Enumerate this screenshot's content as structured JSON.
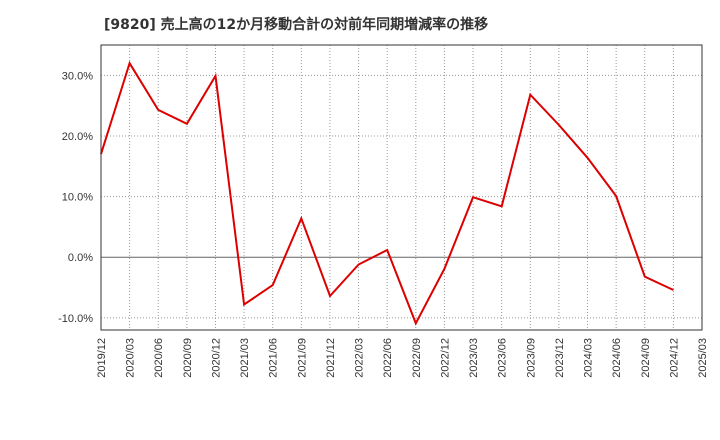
{
  "title": "[9820]  売上高の12か月移動合計の対前年同期増減率の推移",
  "colors": {
    "series": "#dd0000",
    "grid": "#999999",
    "zero_line": "#666666",
    "axis": "#333333"
  },
  "chart_data": {
    "type": "line",
    "title": "[9820]  売上高の12か月移動合計の対前年同期増減率の推移",
    "xlabel": "",
    "ylabel": "",
    "x_tick_labels": [
      "2019/12",
      "2020/03",
      "2020/06",
      "2020/09",
      "2020/12",
      "2021/03",
      "2021/06",
      "2021/09",
      "2021/12",
      "2022/03",
      "2022/06",
      "2022/09",
      "2022/12",
      "2023/03",
      "2023/06",
      "2023/09",
      "2023/12",
      "2024/03",
      "2024/06",
      "2024/09",
      "2024/12",
      "2025/03"
    ],
    "y_ticks": [
      -10,
      0,
      10,
      20,
      30
    ],
    "y_tick_labels": [
      "-10.0%",
      "0.0%",
      "10.0%",
      "20.0%",
      "30.0%"
    ],
    "ylim": [
      -12,
      35
    ],
    "grid": true,
    "legend": "none",
    "series": [
      {
        "x": [
          "2019/12",
          "2020/03",
          "2020/06",
          "2020/09",
          "2020/12",
          "2021/03",
          "2021/06",
          "2021/09",
          "2021/12",
          "2022/03",
          "2022/06",
          "2022/09",
          "2022/12",
          "2023/03",
          "2023/06",
          "2023/09",
          "2023/12",
          "2024/03",
          "2024/06",
          "2024/09",
          "2024/12"
        ],
        "values": [
          17.0,
          32.0,
          24.3,
          22.0,
          29.9,
          -7.8,
          -4.6,
          6.4,
          -6.4,
          -1.2,
          1.2,
          -10.9,
          -1.9,
          9.9,
          8.4,
          26.8,
          21.8,
          16.4,
          10.1,
          -3.2,
          -5.4
        ]
      }
    ]
  }
}
